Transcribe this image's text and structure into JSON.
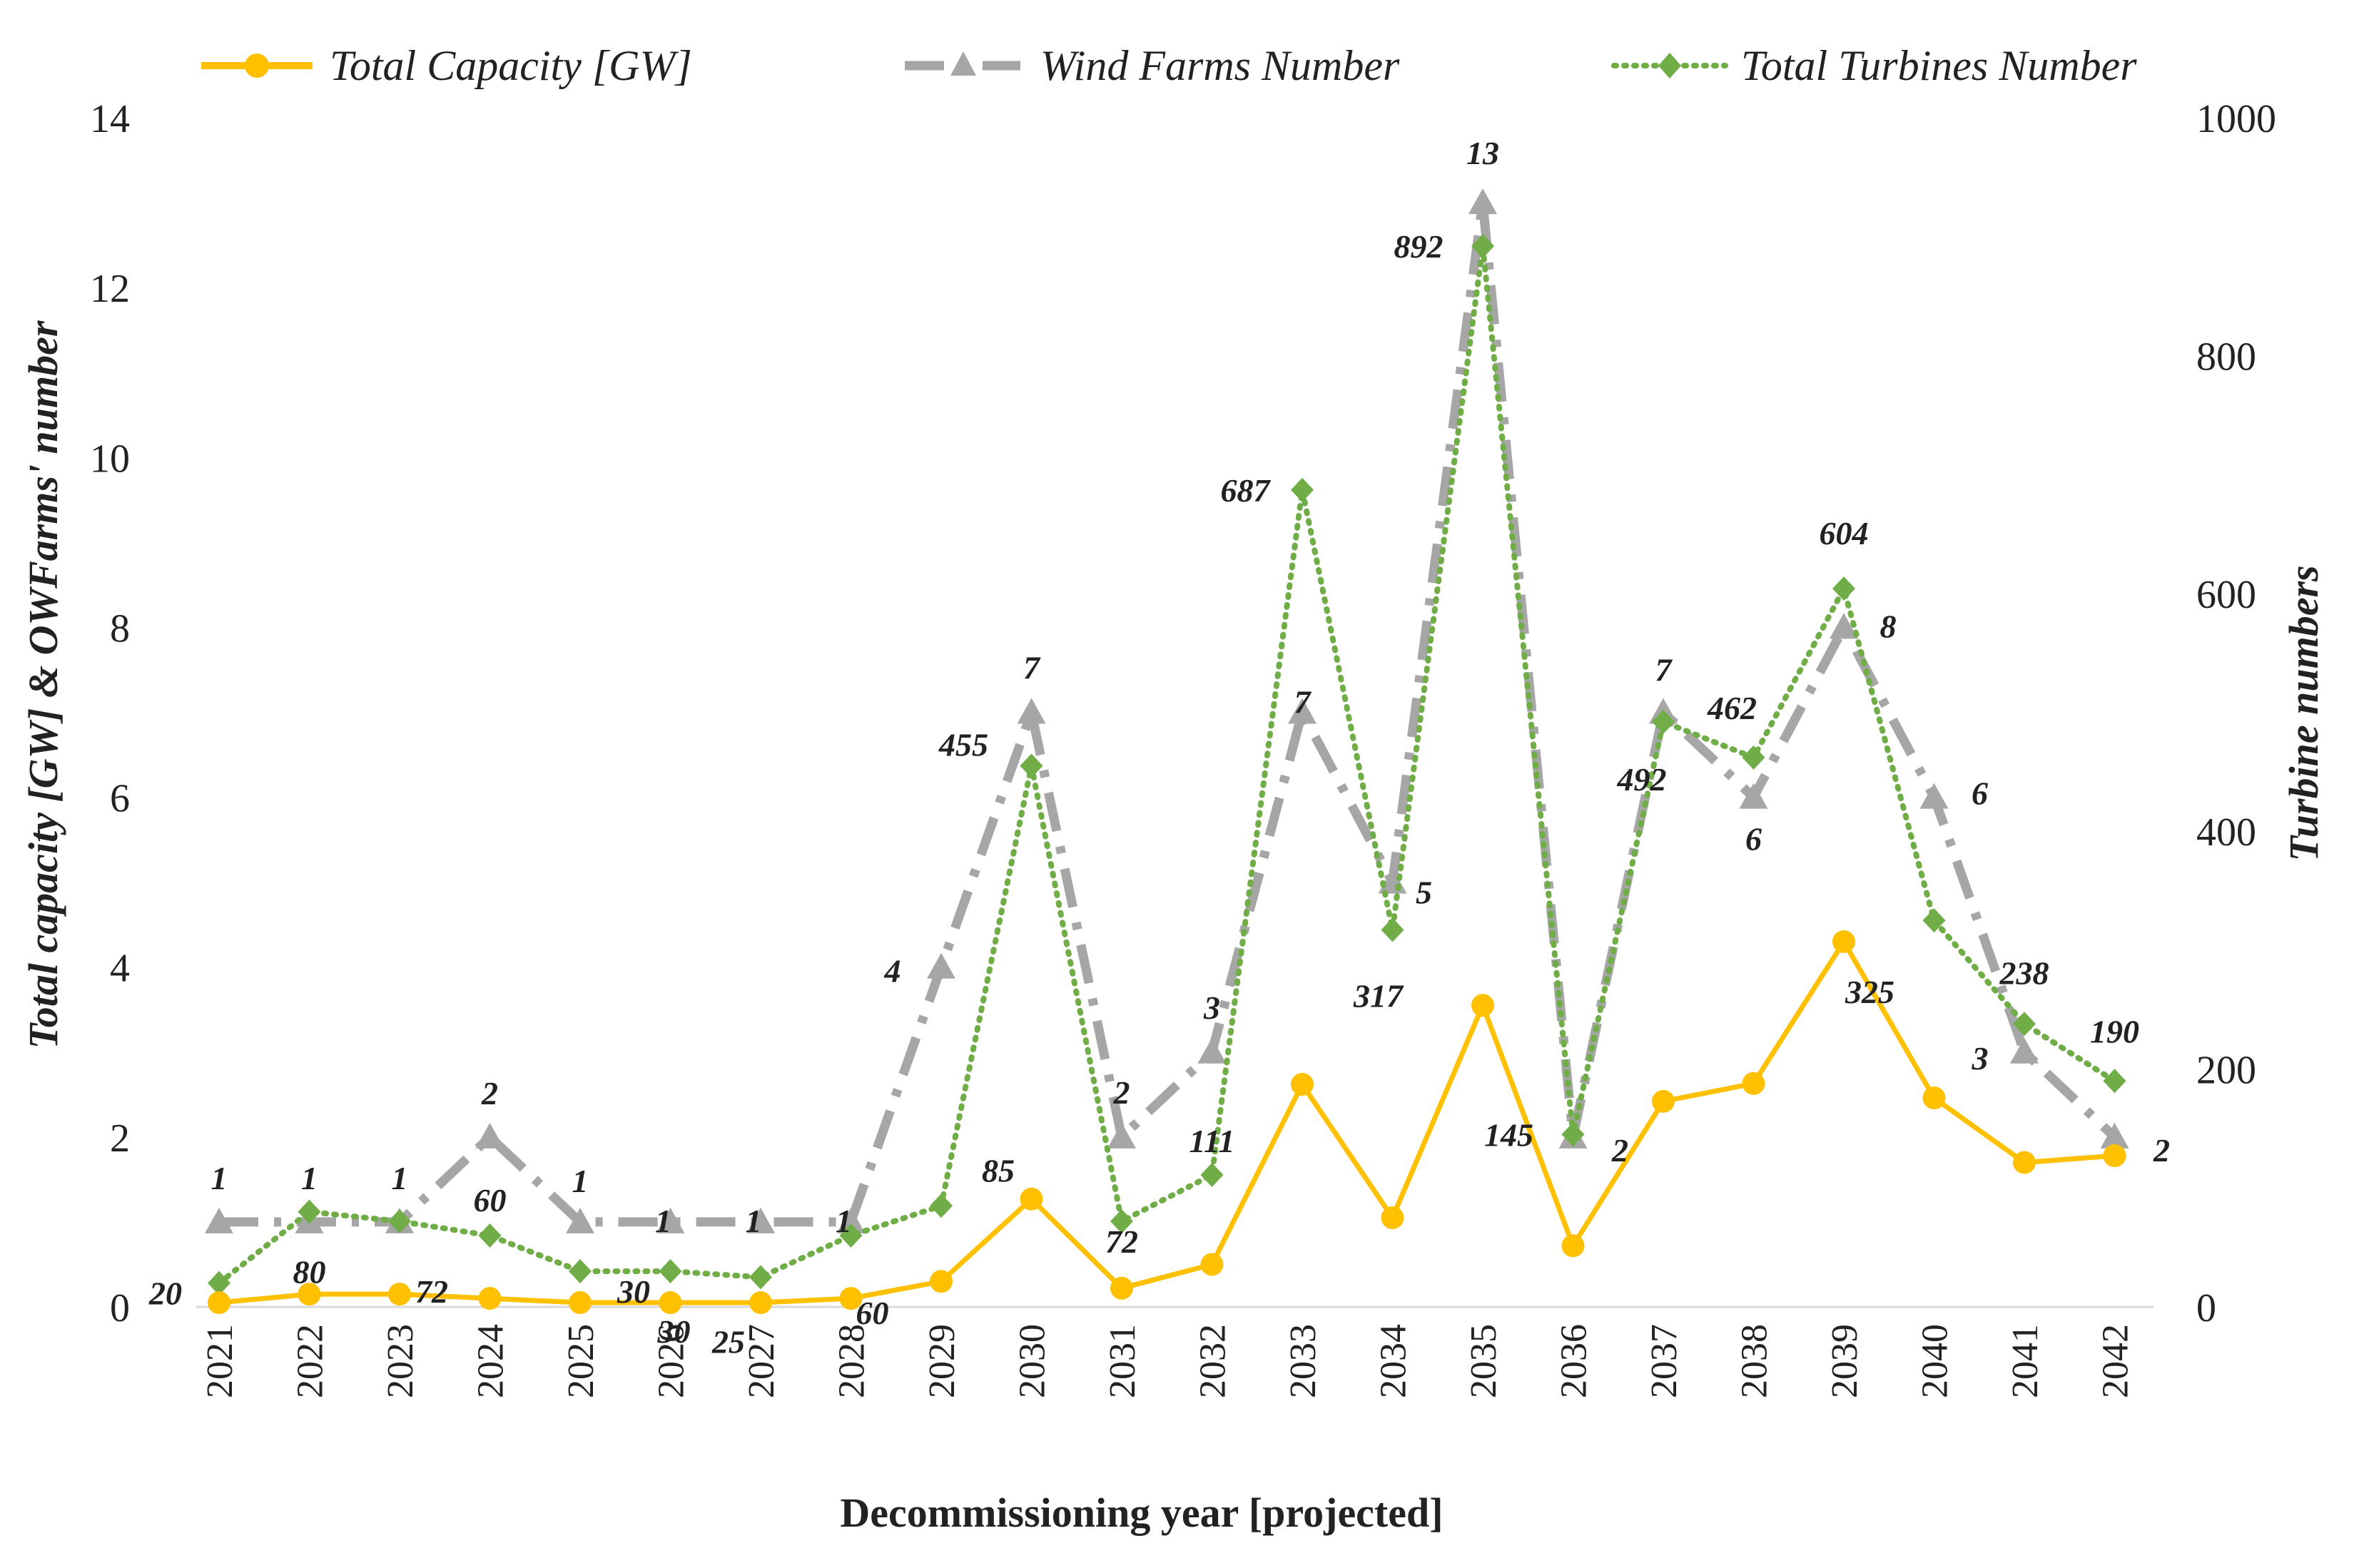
{
  "chart_data": {
    "type": "line",
    "title": "",
    "xlabel": "Decommissioning year [projected]",
    "ylabel_left": "Total capacity [GW] & OWFarms' number",
    "ylabel_right": "Turbine numbers",
    "ylim_left": [
      0,
      14
    ],
    "ylim_right": [
      0,
      1000
    ],
    "yticks_left": [
      "0",
      "2",
      "4",
      "6",
      "8",
      "10",
      "12",
      "14"
    ],
    "yticks_right": [
      "0",
      "200",
      "400",
      "600",
      "800",
      "1000"
    ],
    "categories": [
      "2021",
      "2022",
      "2023",
      "2024",
      "2025",
      "2026",
      "2027",
      "2028",
      "2029",
      "2030",
      "2031",
      "2032",
      "2033",
      "2034",
      "2035",
      "2036",
      "2037",
      "2038",
      "2039",
      "2040",
      "2041",
      "2042"
    ],
    "grid": false,
    "legend_position": "top",
    "series": [
      {
        "name": "Total Capacity [GW]",
        "axis": "left",
        "color": "#FFC000",
        "marker": "circle",
        "values": [
          0.05,
          0.15,
          0.15,
          0.1,
          0.05,
          0.05,
          0.05,
          0.1,
          0.3,
          1.27,
          0.22,
          0.5,
          2.62,
          1.05,
          3.55,
          0.72,
          2.42,
          2.63,
          4.3,
          2.46,
          1.7,
          1.78
        ]
      },
      {
        "name": "Wind Farms Number",
        "axis": "left",
        "color": "#A6A6A6",
        "marker": "triangle",
        "values": [
          1,
          1,
          1,
          2,
          1,
          1,
          1,
          1,
          4,
          7,
          2,
          3,
          7,
          5,
          13,
          2,
          7,
          6,
          8,
          6,
          3,
          2
        ],
        "labels": [
          "1",
          "1",
          "1",
          "2",
          "1",
          "1",
          "1",
          "1",
          "4",
          "7",
          "2",
          "3",
          "7",
          "5",
          "13",
          "2",
          "7",
          "6",
          "8",
          "6",
          "3",
          "2"
        ]
      },
      {
        "name": "Total Turbines Number",
        "axis": "right",
        "color": "#70AD47",
        "marker": "diamond",
        "values": [
          20,
          80,
          72,
          60,
          30,
          30,
          25,
          60,
          85,
          455,
          72,
          111,
          687,
          317,
          892,
          145,
          492,
          462,
          604,
          325,
          238,
          190
        ],
        "labels": [
          "20",
          "80",
          "72",
          "60",
          "30",
          "30",
          "25",
          "60",
          "85",
          "455",
          "72",
          "111",
          "687",
          "317",
          "892",
          "145",
          "492",
          "462",
          "604",
          "325",
          "238",
          "190"
        ]
      }
    ]
  }
}
